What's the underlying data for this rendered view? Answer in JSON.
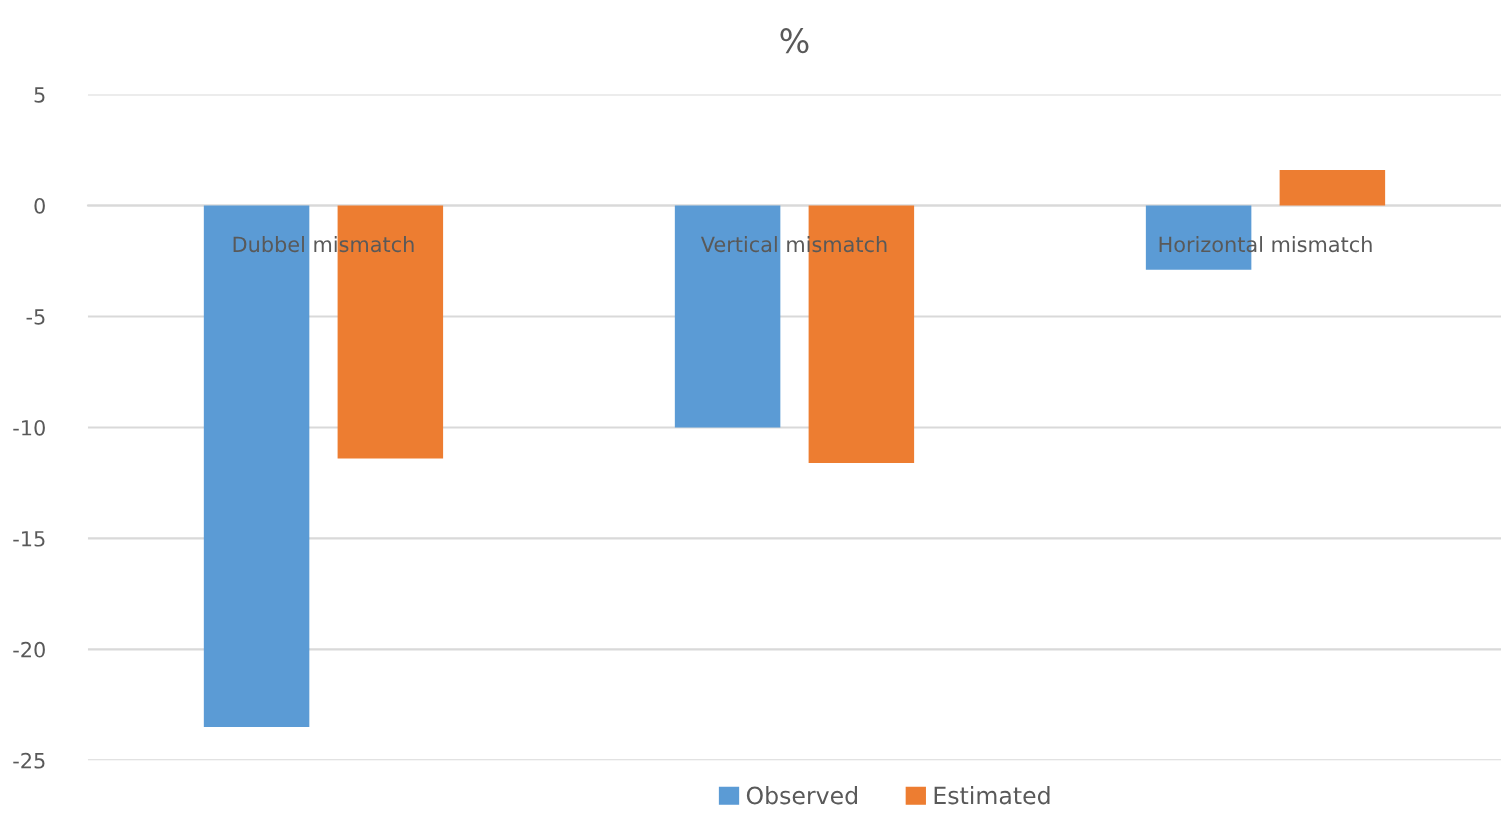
{
  "chart_data": {
    "type": "bar",
    "title": "%",
    "categories": [
      "Dubbel mismatch",
      "Vertical mismatch",
      "Horizontal mismatch"
    ],
    "series": [
      {
        "name": "Observed",
        "color": "#5b9bd5",
        "values": [
          -23.5,
          -10.0,
          -2.9
        ]
      },
      {
        "name": "Estimated",
        "color": "#ed7d31",
        "values": [
          -11.4,
          -11.6,
          1.6
        ]
      }
    ],
    "ylim": [
      -25,
      5
    ],
    "yticks": [
      -25,
      -20,
      -15,
      -10,
      -5,
      0,
      5
    ],
    "grid": "y",
    "legend": "bottom"
  }
}
